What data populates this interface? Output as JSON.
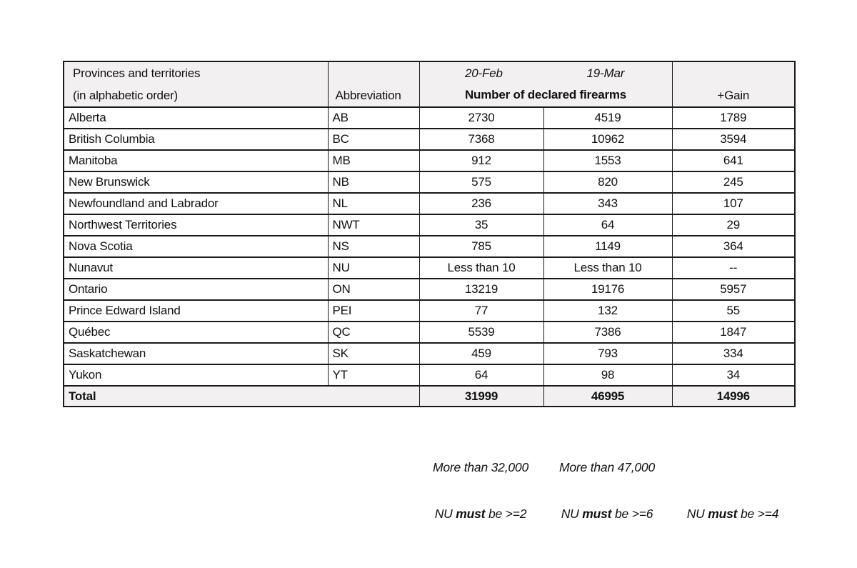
{
  "table": {
    "header": {
      "provinces_line1": "Provinces and territories",
      "provinces_line2": "(in alphabetic order)",
      "abbreviation": "Abbreviation",
      "date_feb": "20-Feb",
      "date_mar": "19-Mar",
      "firearms_label": "Number of declared firearms",
      "gain": "+Gain"
    },
    "rows": [
      {
        "province": "Alberta",
        "abbr": "AB",
        "feb": "2730",
        "mar": "4519",
        "gain": "1789"
      },
      {
        "province": "British Columbia",
        "abbr": "BC",
        "feb": "7368",
        "mar": "10962",
        "gain": "3594"
      },
      {
        "province": "Manitoba",
        "abbr": "MB",
        "feb": "912",
        "mar": "1553",
        "gain": "641"
      },
      {
        "province": "New Brunswick",
        "abbr": "NB",
        "feb": "575",
        "mar": "820",
        "gain": "245"
      },
      {
        "province": "Newfoundland and Labrador",
        "abbr": "NL",
        "feb": "236",
        "mar": "343",
        "gain": "107"
      },
      {
        "province": "Northwest Territories",
        "abbr": "NWT",
        "feb": "35",
        "mar": "64",
        "gain": "29"
      },
      {
        "province": "Nova Scotia",
        "abbr": "NS",
        "feb": "785",
        "mar": "1149",
        "gain": "364"
      },
      {
        "province": "Nunavut",
        "abbr": "NU",
        "feb": "Less than 10",
        "mar": "Less than 10",
        "gain": "--"
      },
      {
        "province": "Ontario",
        "abbr": "ON",
        "feb": "13219",
        "mar": "19176",
        "gain": "5957"
      },
      {
        "province": "Prince Edward Island",
        "abbr": "PEI",
        "feb": "77",
        "mar": "132",
        "gain": "55"
      },
      {
        "province": "Québec",
        "abbr": "QC",
        "feb": "5539",
        "mar": "7386",
        "gain": "1847"
      },
      {
        "province": "Saskatchewan",
        "abbr": "SK",
        "feb": "459",
        "mar": "793",
        "gain": "334"
      },
      {
        "province": "Yukon",
        "abbr": "YT",
        "feb": "64",
        "mar": "98",
        "gain": "34"
      }
    ],
    "total": {
      "label": "Total",
      "feb": "31999",
      "mar": "46995",
      "gain": "14996"
    }
  },
  "notes": {
    "more_feb": "More than 32,000",
    "more_mar": "More than 47,000",
    "nu_feb": {
      "pre": "NU ",
      "bold": "must",
      "post": " be >=2"
    },
    "nu_mar": {
      "pre": "NU ",
      "bold": "must",
      "post": " be >=6"
    },
    "nu_gain": {
      "pre": "NU ",
      "bold": "must",
      "post": " be >=4"
    }
  },
  "colors": {
    "border": "#1a1a1a",
    "header_bg": "#f2f0f0",
    "text": "#111111",
    "page_bg": "#ffffff"
  },
  "chart_data": {
    "type": "table",
    "title": "Number of declared firearms by province/territory, 20-Feb vs 19-Mar",
    "columns": [
      "Provinces and territories (in alphabetic order)",
      "Abbreviation",
      "20-Feb Number of declared firearms",
      "19-Mar Number of declared firearms",
      "+Gain"
    ],
    "rows": [
      [
        "Alberta",
        "AB",
        2730,
        4519,
        1789
      ],
      [
        "British Columbia",
        "BC",
        7368,
        10962,
        3594
      ],
      [
        "Manitoba",
        "MB",
        912,
        1553,
        641
      ],
      [
        "New Brunswick",
        "NB",
        575,
        820,
        245
      ],
      [
        "Newfoundland and Labrador",
        "NL",
        236,
        343,
        107
      ],
      [
        "Northwest Territories",
        "NWT",
        35,
        64,
        29
      ],
      [
        "Nova Scotia",
        "NS",
        785,
        1149,
        364
      ],
      [
        "Nunavut",
        "NU",
        "Less than 10",
        "Less than 10",
        "--"
      ],
      [
        "Ontario",
        "ON",
        13219,
        19176,
        5957
      ],
      [
        "Prince Edward Island",
        "PEI",
        77,
        132,
        55
      ],
      [
        "Québec",
        "QC",
        5539,
        7386,
        1847
      ],
      [
        "Saskatchewan",
        "SK",
        459,
        793,
        334
      ],
      [
        "Yukon",
        "YT",
        64,
        98,
        34
      ]
    ],
    "total_row": [
      "Total",
      "",
      31999,
      46995,
      14996
    ],
    "annotations": [
      "More than 32,000",
      "More than 47,000",
      "NU must be >=2",
      "NU must be >=6",
      "NU must be >=4"
    ]
  }
}
